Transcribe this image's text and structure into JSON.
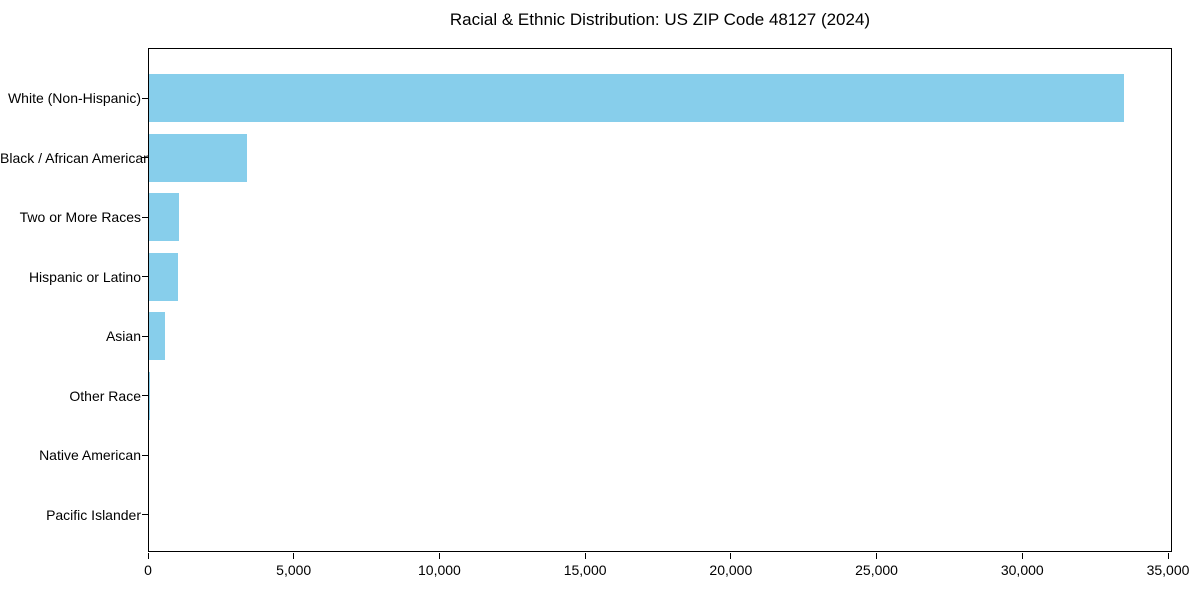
{
  "chart_data": {
    "type": "bar",
    "orientation": "horizontal",
    "title": "Racial & Ethnic Distribution: US ZIP Code 48127 (2024)",
    "categories": [
      "White (Non-Hispanic)",
      "Black / African American",
      "Two or More Races",
      "Hispanic or Latino",
      "Asian",
      "Other Race",
      "Native American",
      "Pacific Islander"
    ],
    "values": [
      33500,
      3400,
      1070,
      1030,
      600,
      60,
      25,
      15
    ],
    "xlabel": "",
    "ylabel": "",
    "xlim": [
      0,
      35000
    ],
    "xticks": {
      "values": [
        0,
        5000,
        10000,
        15000,
        20000,
        25000,
        30000,
        35000
      ],
      "labels": [
        "0",
        "5,000",
        "10,000",
        "15,000",
        "20,000",
        "25,000",
        "30,000",
        "35,000"
      ]
    },
    "bar_color": "#87CEEB",
    "spine_color": "#000000",
    "grid": false,
    "legend": null
  }
}
